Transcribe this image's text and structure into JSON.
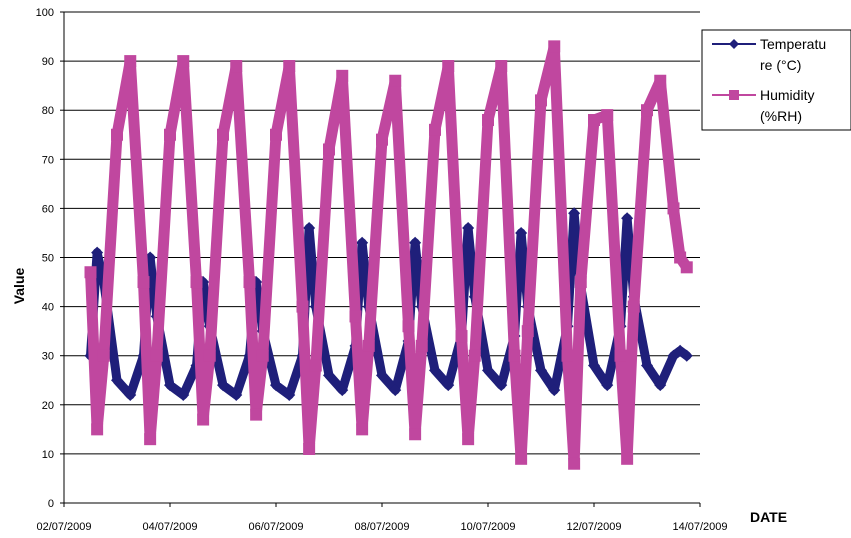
{
  "chart_data": {
    "type": "line",
    "title": "",
    "xlabel": "DATE",
    "ylabel": "Value",
    "ylim": [
      0,
      100
    ],
    "yticks": [
      0,
      10,
      20,
      30,
      40,
      50,
      60,
      70,
      80,
      90,
      100
    ],
    "xlim": [
      "2009-07-02",
      "2009-07-14"
    ],
    "xtick_labels": [
      "02/07/2009",
      "04/07/2009",
      "06/07/2009",
      "08/07/2009",
      "10/07/2009",
      "12/07/2009",
      "14/07/2009"
    ],
    "grid": true,
    "legend_position": "right",
    "series": [
      {
        "name": "Temperature (°C)",
        "legend_lines": [
          "Temperatu",
          "re (°C)"
        ],
        "color": "#1f1f7a",
        "marker": "diamond",
        "x": [
          "2009-07-02T12:00",
          "2009-07-02T15:00",
          "2009-07-02T18:00",
          "2009-07-03T00:00",
          "2009-07-03T06:00",
          "2009-07-03T12:00",
          "2009-07-03T15:00",
          "2009-07-03T18:00",
          "2009-07-04T00:00",
          "2009-07-04T06:00",
          "2009-07-04T12:00",
          "2009-07-04T15:00",
          "2009-07-04T18:00",
          "2009-07-05T00:00",
          "2009-07-05T06:00",
          "2009-07-05T12:00",
          "2009-07-05T15:00",
          "2009-07-05T18:00",
          "2009-07-06T00:00",
          "2009-07-06T06:00",
          "2009-07-06T12:00",
          "2009-07-06T15:00",
          "2009-07-06T18:00",
          "2009-07-07T00:00",
          "2009-07-07T06:00",
          "2009-07-07T12:00",
          "2009-07-07T15:00",
          "2009-07-07T18:00",
          "2009-07-08T00:00",
          "2009-07-08T06:00",
          "2009-07-08T12:00",
          "2009-07-08T15:00",
          "2009-07-08T18:00",
          "2009-07-09T00:00",
          "2009-07-09T06:00",
          "2009-07-09T12:00",
          "2009-07-09T15:00",
          "2009-07-09T18:00",
          "2009-07-10T00:00",
          "2009-07-10T06:00",
          "2009-07-10T12:00",
          "2009-07-10T15:00",
          "2009-07-10T18:00",
          "2009-07-11T00:00",
          "2009-07-11T06:00",
          "2009-07-11T12:00",
          "2009-07-11T15:00",
          "2009-07-11T18:00",
          "2009-07-12T00:00",
          "2009-07-12T06:00",
          "2009-07-12T12:00",
          "2009-07-12T15:00",
          "2009-07-12T18:00",
          "2009-07-13T00:00",
          "2009-07-13T06:00",
          "2009-07-13T12:00",
          "2009-07-13T15:00",
          "2009-07-13T18:00"
        ],
        "values": [
          30,
          51,
          45,
          25,
          22,
          30,
          50,
          38,
          24,
          22,
          28,
          45,
          36,
          24,
          22,
          30,
          45,
          35,
          24,
          22,
          30,
          56,
          40,
          26,
          23,
          32,
          53,
          40,
          26,
          23,
          33,
          53,
          40,
          27,
          24,
          34,
          56,
          42,
          27,
          24,
          34,
          55,
          40,
          27,
          23,
          36,
          59,
          44,
          28,
          24,
          36,
          58,
          42,
          28,
          24,
          30,
          31,
          30
        ]
      },
      {
        "name": "Humidity (%RH)",
        "legend_lines": [
          "Humidity",
          "(%RH)"
        ],
        "color": "#c0479f",
        "marker": "square",
        "x": [
          "2009-07-02T12:00",
          "2009-07-02T15:00",
          "2009-07-02T18:00",
          "2009-07-03T00:00",
          "2009-07-03T06:00",
          "2009-07-03T12:00",
          "2009-07-03T15:00",
          "2009-07-03T18:00",
          "2009-07-04T00:00",
          "2009-07-04T06:00",
          "2009-07-04T12:00",
          "2009-07-04T15:00",
          "2009-07-04T18:00",
          "2009-07-05T00:00",
          "2009-07-05T06:00",
          "2009-07-05T12:00",
          "2009-07-05T15:00",
          "2009-07-05T18:00",
          "2009-07-06T00:00",
          "2009-07-06T06:00",
          "2009-07-06T12:00",
          "2009-07-06T15:00",
          "2009-07-06T18:00",
          "2009-07-07T00:00",
          "2009-07-07T06:00",
          "2009-07-07T12:00",
          "2009-07-07T15:00",
          "2009-07-07T18:00",
          "2009-07-08T00:00",
          "2009-07-08T06:00",
          "2009-07-08T12:00",
          "2009-07-08T15:00",
          "2009-07-08T18:00",
          "2009-07-09T00:00",
          "2009-07-09T06:00",
          "2009-07-09T12:00",
          "2009-07-09T15:00",
          "2009-07-09T18:00",
          "2009-07-10T00:00",
          "2009-07-10T06:00",
          "2009-07-10T12:00",
          "2009-07-10T15:00",
          "2009-07-10T18:00",
          "2009-07-11T00:00",
          "2009-07-11T06:00",
          "2009-07-11T12:00",
          "2009-07-11T15:00",
          "2009-07-11T18:00",
          "2009-07-12T00:00",
          "2009-07-12T06:00",
          "2009-07-12T12:00",
          "2009-07-12T15:00",
          "2009-07-12T18:00",
          "2009-07-13T00:00",
          "2009-07-13T06:00",
          "2009-07-13T12:00",
          "2009-07-13T15:00",
          "2009-07-13T18:00"
        ],
        "values": [
          47,
          15,
          30,
          75,
          90,
          45,
          13,
          30,
          75,
          90,
          45,
          17,
          30,
          75,
          89,
          45,
          18,
          30,
          75,
          89,
          40,
          11,
          28,
          72,
          87,
          38,
          15,
          32,
          74,
          86,
          36,
          14,
          32,
          76,
          89,
          34,
          13,
          30,
          78,
          89,
          30,
          9,
          35,
          82,
          93,
          30,
          8,
          45,
          78,
          79,
          30,
          9,
          40,
          80,
          86,
          60,
          50,
          48
        ]
      }
    ]
  }
}
